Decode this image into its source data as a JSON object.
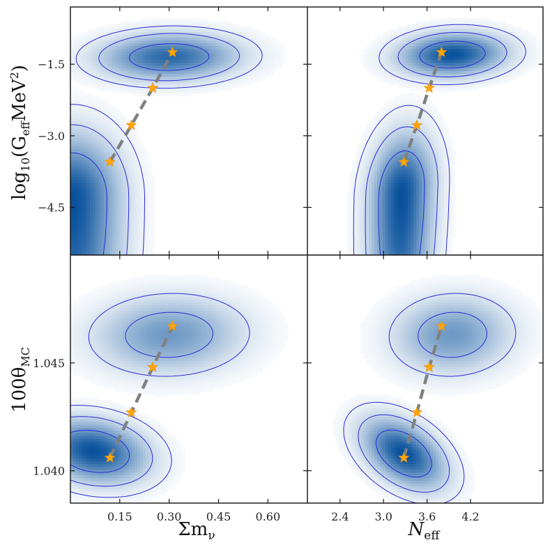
{
  "chart_data": {
    "type": "contour-triangle",
    "colors": {
      "fill": "#08519c",
      "contour": "#2a2ad8",
      "star": "#ffa50a",
      "track": "#808080"
    },
    "axes": {
      "x_left": {
        "label_main": "Σm",
        "label_sub": "ν",
        "range": [
          0.0,
          0.72
        ],
        "ticks": [
          0.15,
          0.3,
          0.45,
          0.6
        ],
        "tick_labels": [
          "0.15",
          "0.30",
          "0.45",
          "0.60"
        ]
      },
      "x_right": {
        "label_main": "N",
        "label_sub": "eff",
        "range": [
          1.95,
          5.2
        ],
        "ticks": [
          2.4,
          3.0,
          3.6,
          4.2
        ],
        "tick_labels": [
          "2.4",
          "3.0",
          "3.6",
          "4.2"
        ]
      },
      "y_top": {
        "label_pre": "log",
        "label_sub1": "10",
        "label_mid": "(G",
        "label_sub2": "eff",
        "label_post": "MeV",
        "label_sup": "2",
        "label_close": ")",
        "range": [
          -5.5,
          -0.3
        ],
        "ticks": [
          -1.5,
          -3.0,
          -4.5
        ],
        "tick_labels": [
          "−1.5",
          "−3.0",
          "−4.5"
        ]
      },
      "y_bottom": {
        "label_main": "100θ",
        "label_sub": "MC",
        "range": [
          1.0385,
          1.05
        ],
        "ticks": [
          1.045,
          1.04
        ],
        "tick_labels": [
          "1.045",
          "1.040"
        ]
      }
    },
    "panels": [
      {
        "name": "top-left",
        "x_axis": "x_left",
        "y_axis": "y_top",
        "modes": [
          {
            "cx": 0.005,
            "cy": -4.3,
            "sx": 0.09,
            "sy": 0.8,
            "rho": 0.0,
            "amp": 1.0,
            "levels": [
              0.5,
              0.16,
              0.05
            ],
            "extend": [
              0.0,
              -6.2,
              0.31,
              -2.45
            ]
          },
          {
            "cx": 0.3,
            "cy": -1.35,
            "sx": 0.13,
            "sy": 0.3,
            "rho": 0.05,
            "amp": 0.85,
            "levels": [
              0.55,
              0.22,
              0.08
            ]
          }
        ],
        "stars": [
          {
            "x": 0.12,
            "y": -3.55
          },
          {
            "x": 0.185,
            "y": -2.78
          },
          {
            "x": 0.25,
            "y": -2.0
          },
          {
            "x": 0.31,
            "y": -1.25
          }
        ]
      },
      {
        "name": "top-right",
        "x_axis": "x_right",
        "y_axis": "y_top",
        "modes": [
          {
            "cx": 3.25,
            "cy": -4.2,
            "sx": 0.27,
            "sy": 0.75,
            "rho": 0.15,
            "amp": 1.0,
            "levels": [
              0.5,
              0.18,
              0.05
            ],
            "extend": [
              2.4,
              -6.2,
              4.15,
              -2.3
            ]
          },
          {
            "cx": 3.95,
            "cy": -1.3,
            "sx": 0.45,
            "sy": 0.28,
            "rho": 0.1,
            "amp": 1.0,
            "levels": [
              0.6,
              0.25,
              0.08
            ]
          }
        ],
        "stars": [
          {
            "x": 3.28,
            "y": -3.55
          },
          {
            "x": 3.46,
            "y": -2.78
          },
          {
            "x": 3.63,
            "y": -2.0
          },
          {
            "x": 3.8,
            "y": -1.25
          }
        ]
      },
      {
        "name": "bottom-left",
        "x_axis": "x_left",
        "y_axis": "y_bottom",
        "modes": [
          {
            "cx": 0.07,
            "cy": 1.0409,
            "sx": 0.1,
            "sy": 0.0009,
            "rho": -0.2,
            "amp": 1.0,
            "levels": [
              0.55,
              0.2,
              0.06
            ]
          },
          {
            "cx": 0.3,
            "cy": 1.0463,
            "sx": 0.14,
            "sy": 0.0011,
            "rho": 0.05,
            "amp": 0.55,
            "levels": [
              0.75,
              0.35,
              0.12
            ]
          }
        ],
        "stars": [
          {
            "x": 0.12,
            "y": 1.0406
          },
          {
            "x": 0.185,
            "y": 1.0427
          },
          {
            "x": 0.25,
            "y": 1.0448
          },
          {
            "x": 0.31,
            "y": 1.0467
          }
        ]
      },
      {
        "name": "bottom-right",
        "x_axis": "x_right",
        "y_axis": "y_bottom",
        "modes": [
          {
            "cx": 3.28,
            "cy": 1.0408,
            "sx": 0.35,
            "sy": 0.001,
            "rho": -0.45,
            "amp": 1.0,
            "levels": [
              0.55,
              0.2,
              0.06
            ]
          },
          {
            "cx": 3.95,
            "cy": 1.0463,
            "sx": 0.5,
            "sy": 0.0011,
            "rho": 0.05,
            "amp": 0.55,
            "levels": [
              0.75,
              0.35,
              0.12
            ]
          }
        ],
        "stars": [
          {
            "x": 3.28,
            "y": 1.0406
          },
          {
            "x": 3.46,
            "y": 1.0427
          },
          {
            "x": 3.63,
            "y": 1.0448
          },
          {
            "x": 3.8,
            "y": 1.0467
          }
        ]
      }
    ]
  }
}
